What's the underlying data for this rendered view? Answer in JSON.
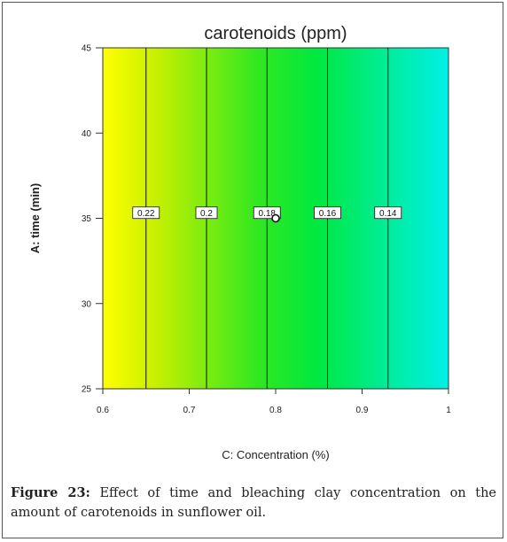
{
  "chart_data": {
    "type": "heatmap",
    "title": "carotenoids (ppm)",
    "xlabel": "C: Concentration (%)",
    "ylabel": "A: time (min)",
    "xlim": [
      0.6,
      1.0
    ],
    "ylim": [
      25,
      45
    ],
    "x_ticks": [
      0.6,
      0.7,
      0.8,
      0.9,
      1
    ],
    "x_tick_labels": [
      "0.6",
      "0.7",
      "0.8",
      "0.9",
      "1"
    ],
    "y_ticks": [
      25,
      30,
      35,
      40,
      45
    ],
    "y_tick_labels": [
      "25",
      "30",
      "35",
      "40",
      "45"
    ],
    "color_low": "#00f0e8",
    "color_high": "#ffff00",
    "contours": [
      {
        "x": 0.65,
        "value": 0.22,
        "label": "0.22"
      },
      {
        "x": 0.72,
        "value": 0.2,
        "label": "0.2"
      },
      {
        "x": 0.79,
        "value": 0.18,
        "label": "0.18"
      },
      {
        "x": 0.86,
        "value": 0.16,
        "label": "0.16"
      },
      {
        "x": 0.93,
        "value": 0.14,
        "label": "0.14"
      }
    ],
    "contour_label_y": 35.3,
    "design_point": {
      "x": 0.8,
      "y": 35
    }
  },
  "caption": {
    "prefix": "Figure 23:",
    "text": " Effect of time and bleaching clay concentration on the amount of carotenoids in sunflower oil."
  }
}
